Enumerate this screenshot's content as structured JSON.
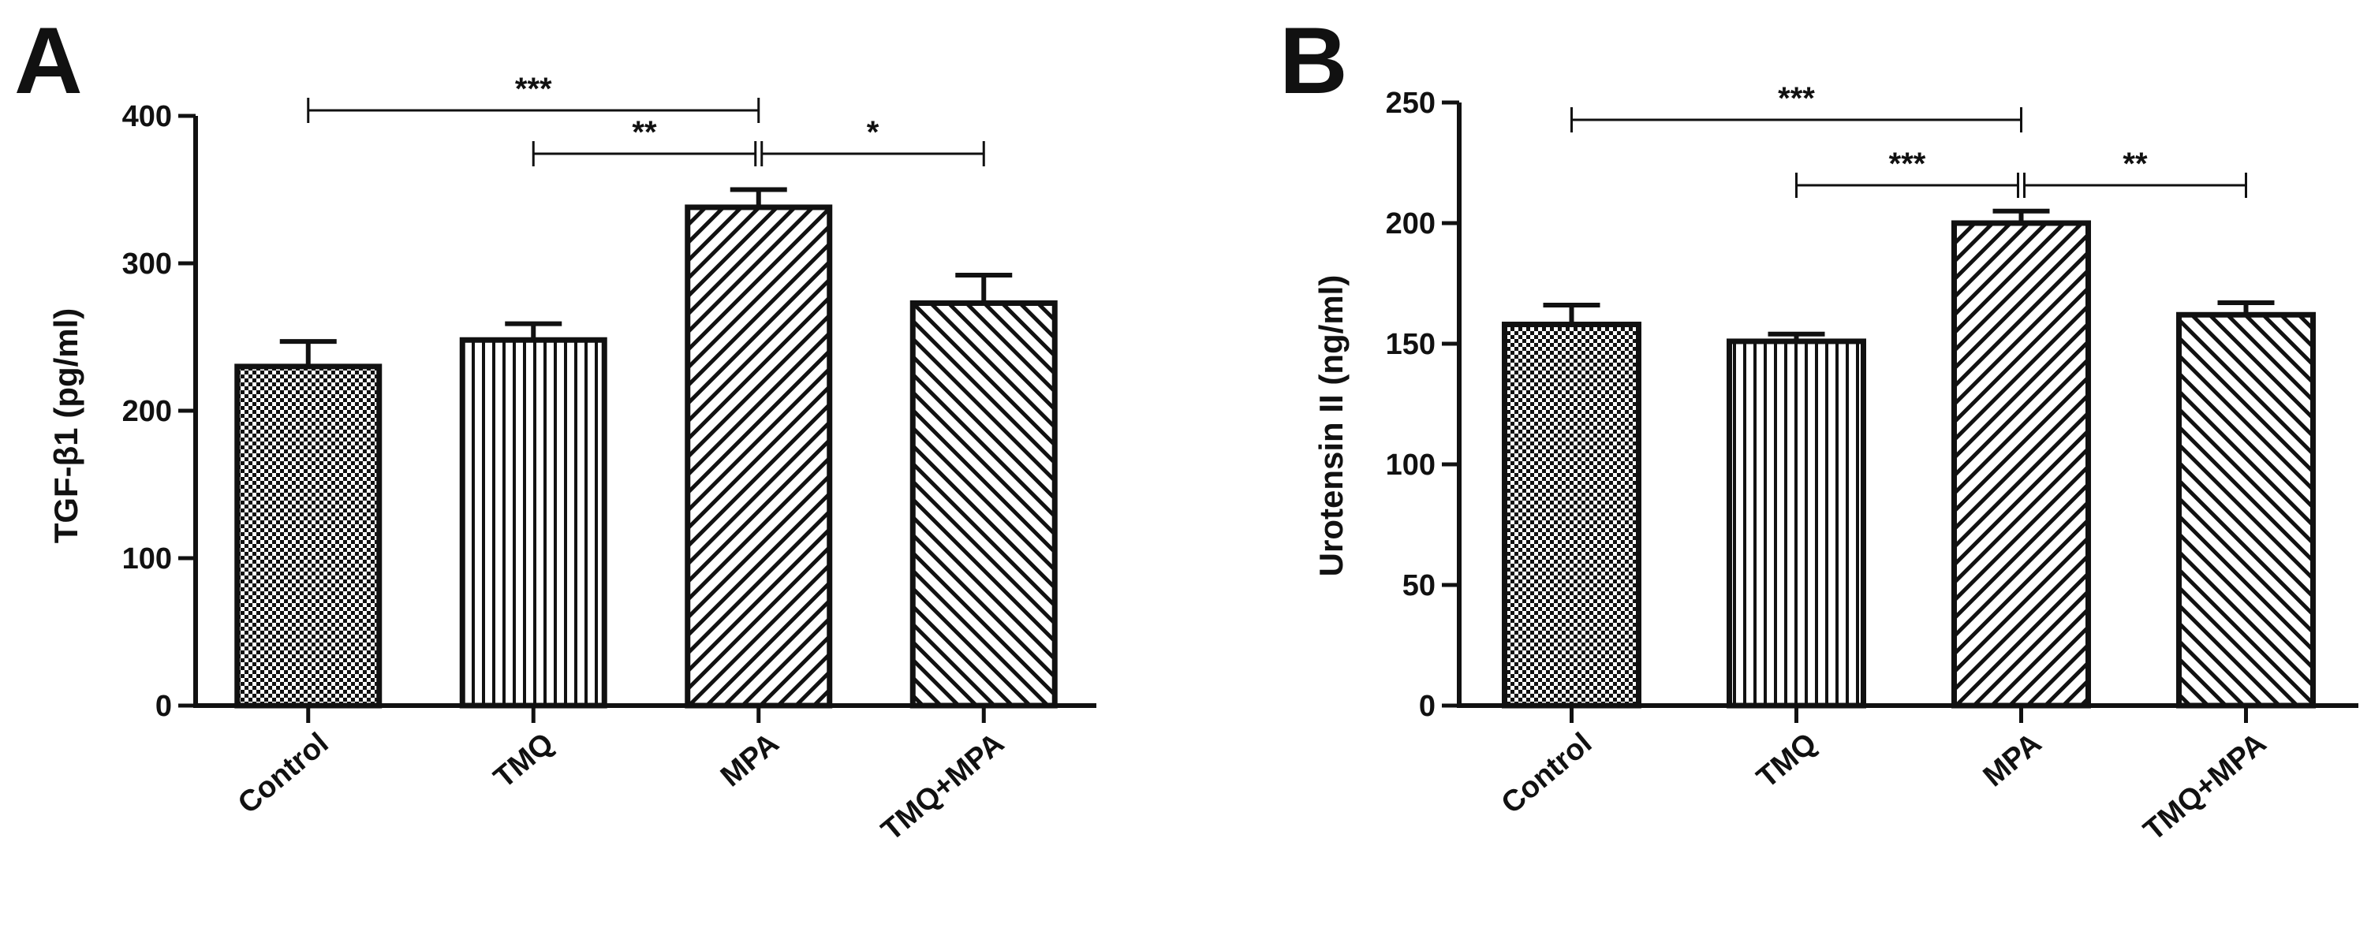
{
  "chart_data": [
    {
      "type": "bar",
      "panel": "A",
      "title": "",
      "xlabel": "",
      "ylabel": "TGF-β1 (pg/ml)",
      "categories": [
        "Control",
        "TMQ",
        "MPA",
        "TMQ+MPA"
      ],
      "values": [
        230,
        248,
        338,
        273
      ],
      "errors": [
        17,
        11,
        12,
        19
      ],
      "patterns": [
        "checker",
        "vertical",
        "diag-right",
        "diag-left"
      ],
      "ylim": [
        0,
        400
      ],
      "yticks": [
        "0",
        "100",
        "200",
        "300",
        "400"
      ],
      "significance": [
        {
          "from": 0,
          "to": 2,
          "label": "***"
        },
        {
          "from": 1,
          "to": 2,
          "label": "**"
        },
        {
          "from": 2,
          "to": 3,
          "label": "*"
        }
      ]
    },
    {
      "type": "bar",
      "panel": "B",
      "title": "",
      "xlabel": "",
      "ylabel": "Urotensin II (ng/ml)",
      "categories": [
        "Control",
        "TMQ",
        "MPA",
        "TMQ+MPA"
      ],
      "values": [
        158,
        151,
        200,
        162
      ],
      "errors": [
        8,
        3,
        5,
        5
      ],
      "patterns": [
        "checker",
        "vertical",
        "diag-right",
        "diag-left"
      ],
      "ylim": [
        0,
        250
      ],
      "yticks": [
        "0",
        "50",
        "100",
        "150",
        "200",
        "250"
      ],
      "significance": [
        {
          "from": 0,
          "to": 2,
          "label": "***"
        },
        {
          "from": 1,
          "to": 2,
          "label": "***"
        },
        {
          "from": 2,
          "to": 3,
          "label": "**"
        }
      ]
    }
  ]
}
